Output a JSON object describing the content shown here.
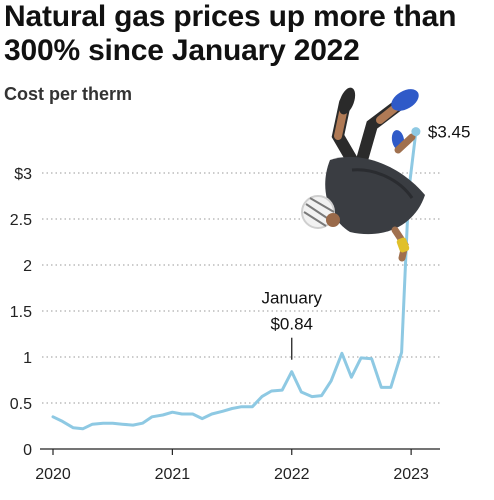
{
  "headline": "Natural gas prices up more than 300% since January 2022",
  "chart_data": {
    "type": "line",
    "title": "Natural gas prices up more than 300% since January 2022",
    "ylabel": "Cost per therm",
    "ylim": [
      0,
      3.5
    ],
    "xlim": [
      2020,
      2023.2
    ],
    "yticks": [
      {
        "value": 0,
        "label": "0"
      },
      {
        "value": 0.5,
        "label": "0.5"
      },
      {
        "value": 1,
        "label": "1"
      },
      {
        "value": 1.5,
        "label": "1.5"
      },
      {
        "value": 2,
        "label": "2"
      },
      {
        "value": 2.5,
        "label": "2.5"
      },
      {
        "value": 3,
        "label": "$3"
      }
    ],
    "xticks": [
      {
        "value": 2020,
        "label": "2020"
      },
      {
        "value": 2021,
        "label": "2021"
      },
      {
        "value": 2022,
        "label": "2022"
      },
      {
        "value": 2023,
        "label": "2023"
      }
    ],
    "grid": true,
    "line_color": "#8ec9e3",
    "series": [
      {
        "points": [
          [
            2020.0,
            0.35
          ],
          [
            2020.08,
            0.3
          ],
          [
            2020.17,
            0.23
          ],
          [
            2020.25,
            0.22
          ],
          [
            2020.33,
            0.27
          ],
          [
            2020.42,
            0.28
          ],
          [
            2020.5,
            0.28
          ],
          [
            2020.58,
            0.27
          ],
          [
            2020.67,
            0.26
          ],
          [
            2020.75,
            0.28
          ],
          [
            2020.83,
            0.35
          ],
          [
            2020.92,
            0.37
          ],
          [
            2021.0,
            0.4
          ],
          [
            2021.08,
            0.38
          ],
          [
            2021.17,
            0.38
          ],
          [
            2021.25,
            0.33
          ],
          [
            2021.33,
            0.38
          ],
          [
            2021.42,
            0.41
          ],
          [
            2021.5,
            0.44
          ],
          [
            2021.58,
            0.46
          ],
          [
            2021.67,
            0.46
          ],
          [
            2021.75,
            0.57
          ],
          [
            2021.83,
            0.63
          ],
          [
            2021.92,
            0.64
          ],
          [
            2022.0,
            0.84
          ],
          [
            2022.08,
            0.62
          ],
          [
            2022.17,
            0.57
          ],
          [
            2022.25,
            0.58
          ],
          [
            2022.33,
            0.74
          ],
          [
            2022.42,
            1.04
          ],
          [
            2022.5,
            0.78
          ],
          [
            2022.58,
            0.99
          ],
          [
            2022.67,
            0.98
          ],
          [
            2022.75,
            0.67
          ],
          [
            2022.83,
            0.67
          ],
          [
            2022.92,
            1.05
          ],
          [
            2022.98,
            2.8
          ],
          [
            2023.04,
            3.45
          ]
        ]
      }
    ],
    "annotations": [
      {
        "x": 2022.0,
        "y": 0.84,
        "lines": [
          "January",
          "$0.84"
        ]
      }
    ],
    "end_label": {
      "x": 2023.04,
      "y": 3.45,
      "text": "$3.45"
    }
  },
  "photo": {
    "label": "cyclist-flipping-photo"
  }
}
